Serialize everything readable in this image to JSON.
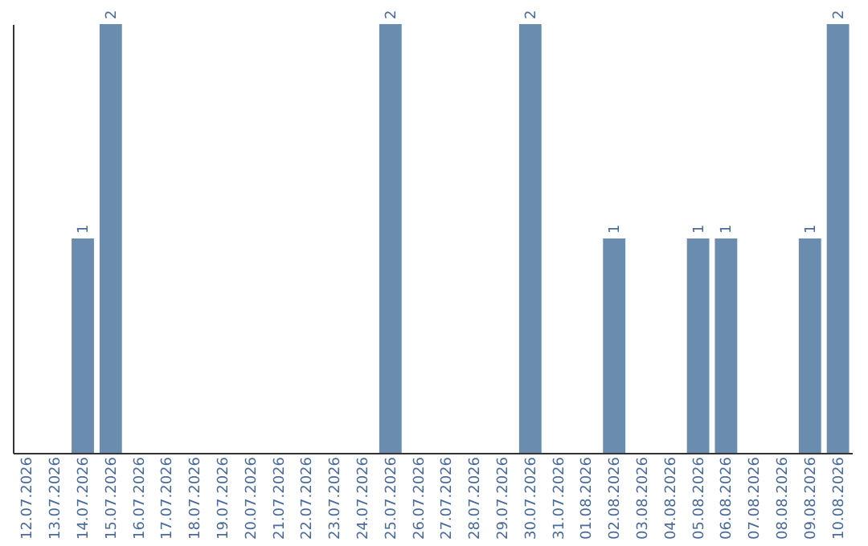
{
  "chart_data": {
    "type": "bar",
    "categories": [
      "12.07.2026",
      "13.07.2026",
      "14.07.2026",
      "15.07.2026",
      "16.07.2026",
      "17.07.2026",
      "18.07.2026",
      "19.07.2026",
      "20.07.2026",
      "21.07.2026",
      "22.07.2026",
      "23.07.2026",
      "24.07.2026",
      "25.07.2026",
      "26.07.2026",
      "27.07.2026",
      "28.07.2026",
      "29.07.2026",
      "30.07.2026",
      "31.07.2026",
      "01.08.2026",
      "02.08.2026",
      "03.08.2026",
      "04.08.2026",
      "05.08.2026",
      "06.08.2026",
      "07.08.2026",
      "08.08.2026",
      "09.08.2026",
      "10.08.2026"
    ],
    "values": [
      0,
      0,
      1,
      2,
      0,
      0,
      0,
      0,
      0,
      0,
      0,
      0,
      0,
      2,
      0,
      0,
      0,
      0,
      2,
      0,
      0,
      1,
      0,
      0,
      1,
      1,
      0,
      0,
      1,
      2
    ],
    "value_labels": [
      null,
      null,
      "1",
      "2",
      null,
      null,
      null,
      null,
      null,
      null,
      null,
      null,
      null,
      "2",
      null,
      null,
      null,
      null,
      "2",
      null,
      null,
      "1",
      null,
      null,
      "1",
      "1",
      null,
      null,
      "1",
      "2"
    ],
    "color": "#6a8caf",
    "ylim": [
      0,
      2
    ],
    "tick_labels": "x",
    "grid": false
  }
}
